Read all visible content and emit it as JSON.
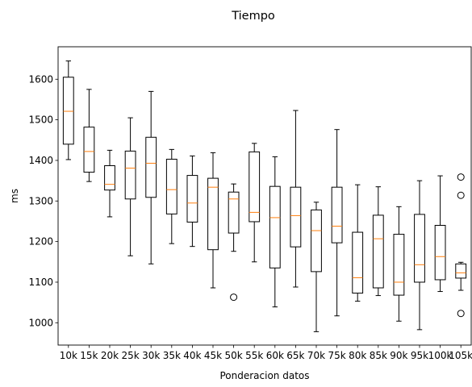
{
  "chart_data": {
    "type": "box",
    "title": "Tiempo",
    "xlabel": "Ponderacion datos",
    "ylabel": "ms",
    "ylim": [
      945,
      1680
    ],
    "yticks": [
      1000,
      1100,
      1200,
      1300,
      1400,
      1500,
      1600
    ],
    "grid": false,
    "legend": "none",
    "colors": {
      "box": "#000000",
      "median": "#ff7f0e",
      "outlier": "#000000"
    },
    "categories": [
      "10k",
      "15k",
      "20k",
      "25k",
      "30k",
      "35k",
      "40k",
      "45k",
      "50k",
      "55k",
      "60k",
      "65k",
      "70k",
      "75k",
      "80k",
      "85k",
      "90k",
      "95k",
      "100k",
      "105k"
    ],
    "boxes": [
      {
        "whislo": 1402,
        "q1": 1440,
        "med": 1521,
        "q3": 1605,
        "whishi": 1645,
        "fliers": []
      },
      {
        "whislo": 1348,
        "q1": 1371,
        "med": 1422,
        "q3": 1482,
        "whishi": 1575,
        "fliers": []
      },
      {
        "whislo": 1261,
        "q1": 1327,
        "med": 1341,
        "q3": 1387,
        "whishi": 1425,
        "fliers": []
      },
      {
        "whislo": 1165,
        "q1": 1305,
        "med": 1381,
        "q3": 1423,
        "whishi": 1505,
        "fliers": []
      },
      {
        "whislo": 1145,
        "q1": 1309,
        "med": 1393,
        "q3": 1457,
        "whishi": 1570,
        "fliers": []
      },
      {
        "whislo": 1195,
        "q1": 1268,
        "med": 1328,
        "q3": 1403,
        "whishi": 1427,
        "fliers": []
      },
      {
        "whislo": 1188,
        "q1": 1248,
        "med": 1295,
        "q3": 1363,
        "whishi": 1411,
        "fliers": []
      },
      {
        "whislo": 1086,
        "q1": 1180,
        "med": 1334,
        "q3": 1356,
        "whishi": 1419,
        "fliers": []
      },
      {
        "whislo": 1176,
        "q1": 1221,
        "med": 1305,
        "q3": 1322,
        "whishi": 1342,
        "fliers": [
          1063
        ]
      },
      {
        "whislo": 1150,
        "q1": 1249,
        "med": 1272,
        "q3": 1421,
        "whishi": 1442,
        "fliers": []
      },
      {
        "whislo": 1039,
        "q1": 1135,
        "med": 1259,
        "q3": 1336,
        "whishi": 1409,
        "fliers": []
      },
      {
        "whislo": 1088,
        "q1": 1187,
        "med": 1264,
        "q3": 1334,
        "whishi": 1523,
        "fliers": []
      },
      {
        "whislo": 978,
        "q1": 1126,
        "med": 1227,
        "q3": 1278,
        "whishi": 1297,
        "fliers": []
      },
      {
        "whislo": 1017,
        "q1": 1197,
        "med": 1238,
        "q3": 1334,
        "whishi": 1476,
        "fliers": []
      },
      {
        "whislo": 1053,
        "q1": 1073,
        "med": 1111,
        "q3": 1223,
        "whishi": 1340,
        "fliers": []
      },
      {
        "whislo": 1067,
        "q1": 1086,
        "med": 1207,
        "q3": 1265,
        "whishi": 1335,
        "fliers": []
      },
      {
        "whislo": 1004,
        "q1": 1068,
        "med": 1100,
        "q3": 1218,
        "whishi": 1286,
        "fliers": []
      },
      {
        "whislo": 983,
        "q1": 1100,
        "med": 1143,
        "q3": 1267,
        "whishi": 1350,
        "fliers": []
      },
      {
        "whislo": 1077,
        "q1": 1106,
        "med": 1163,
        "q3": 1240,
        "whishi": 1362,
        "fliers": []
      },
      {
        "whislo": 1080,
        "q1": 1110,
        "med": 1123,
        "q3": 1145,
        "whishi": 1149,
        "fliers": [
          1359,
          1314,
          1023
        ]
      }
    ]
  }
}
